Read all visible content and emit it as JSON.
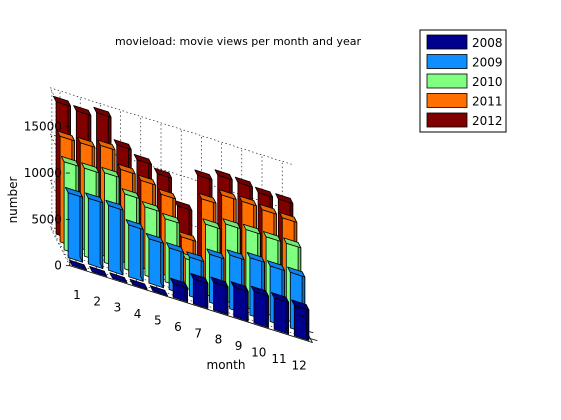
{
  "chart_data": {
    "type": "bar3d",
    "title": "movieload: movie views per month and year",
    "xlabel": "month",
    "ylabel": "number",
    "categories": [
      "1",
      "2",
      "3",
      "4",
      "5",
      "6",
      "7",
      "8",
      "9",
      "10",
      "11",
      "12"
    ],
    "yticks": [
      "0",
      "5000",
      "10000",
      "15000"
    ],
    "ylim": [
      0,
      15000
    ],
    "grid": true,
    "legend_position": "top-right",
    "series": [
      {
        "name": "2008",
        "color": "#00008F",
        "values": [
          0,
          0,
          0,
          0,
          0,
          1500,
          2700,
          3000,
          3200,
          3400,
          3400,
          3300
        ]
      },
      {
        "name": "2009",
        "color": "#0F8FFF",
        "values": [
          7000,
          7100,
          7000,
          5600,
          4800,
          4500,
          4200,
          5200,
          5800,
          6200,
          6000,
          6000
        ]
      },
      {
        "name": "2010",
        "color": "#80FF80",
        "values": [
          9500,
          9500,
          9700,
          8100,
          7400,
          6800,
          3200,
          7600,
          8300,
          8400,
          8300,
          8300
        ]
      },
      {
        "name": "2011",
        "color": "#FF7000",
        "values": [
          11400,
          11400,
          11800,
          9900,
          9400,
          8600,
          4700,
          9500,
          10600,
          10600,
          10400,
          10200
        ]
      },
      {
        "name": "2012",
        "color": "#800000",
        "values": [
          14300,
          14000,
          14500,
          11700,
          10800,
          10000,
          7200,
          11200,
          11900,
          11800,
          11400,
          11400
        ]
      }
    ]
  }
}
